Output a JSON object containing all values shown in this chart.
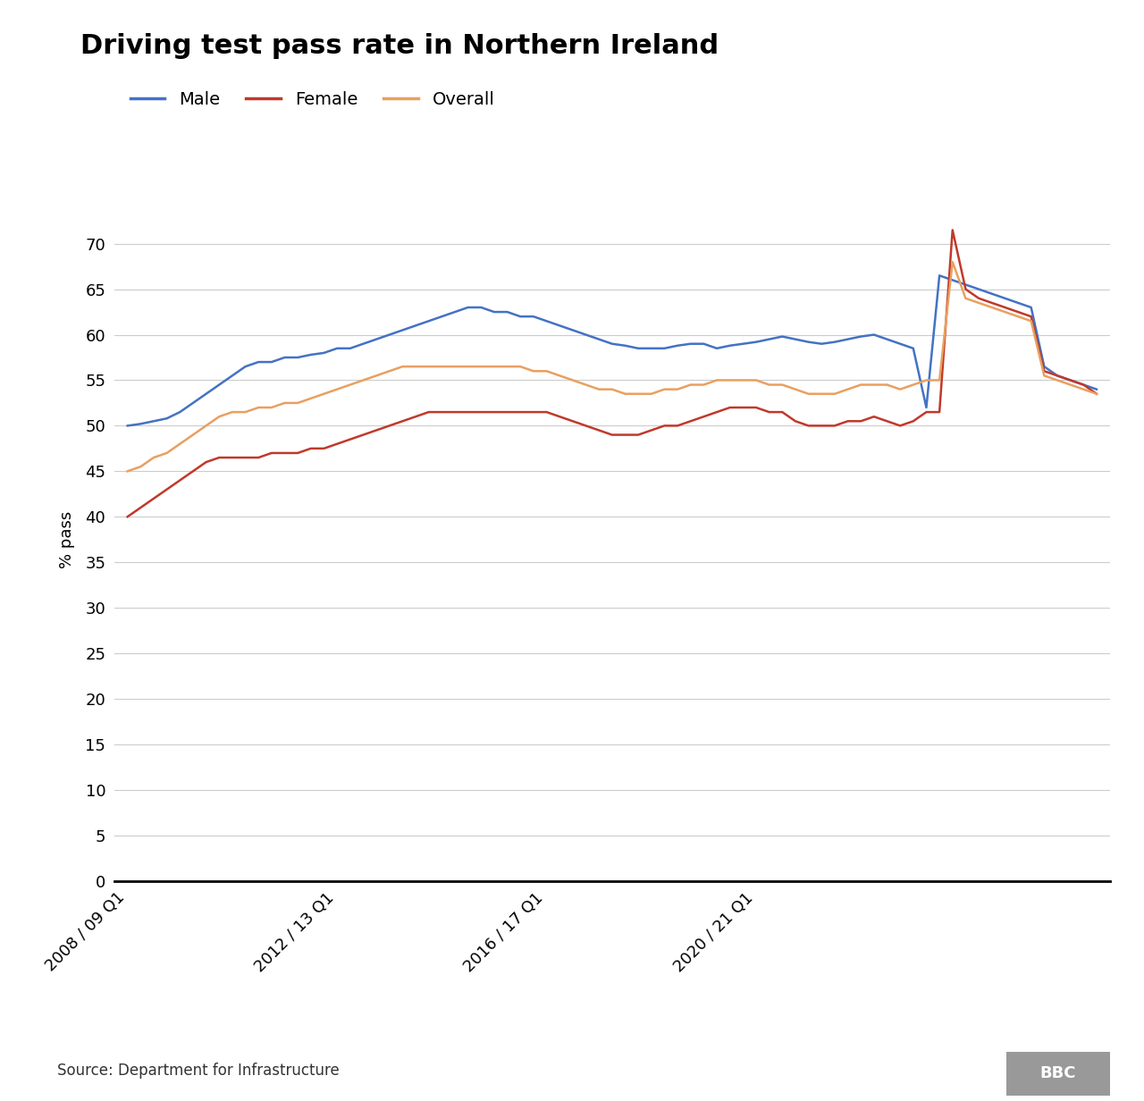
{
  "title": "Driving test pass rate in Northern Ireland",
  "ylabel": "% pass",
  "source": "Source: Department for Infrastructure",
  "line_colors": {
    "male": "#4472C4",
    "female": "#C0392B",
    "overall": "#E8A060"
  },
  "ylim": [
    0,
    75
  ],
  "yticks": [
    0,
    5,
    10,
    15,
    20,
    25,
    30,
    35,
    40,
    45,
    50,
    55,
    60,
    65,
    70
  ],
  "xtick_labels": [
    "2008 / 09 Q1",
    "2012 / 13 Q1",
    "2016 / 17 Q1",
    "2020 / 21 Q1"
  ],
  "male": [
    50.0,
    50.2,
    50.5,
    50.8,
    51.5,
    52.5,
    53.5,
    54.5,
    55.5,
    56.5,
    57.0,
    57.0,
    57.5,
    57.5,
    57.8,
    58.0,
    58.5,
    58.5,
    59.0,
    59.5,
    60.0,
    60.5,
    61.0,
    61.5,
    62.0,
    62.5,
    63.0,
    63.0,
    62.5,
    62.5,
    62.0,
    62.0,
    61.5,
    61.0,
    60.5,
    60.0,
    59.5,
    59.0,
    58.8,
    58.5,
    58.5,
    58.5,
    58.8,
    59.0,
    59.0,
    58.5,
    58.8,
    59.0,
    59.2,
    59.5,
    59.8,
    59.5,
    59.2,
    59.0,
    59.2,
    59.5,
    59.8,
    60.0,
    59.5,
    59.0,
    58.5,
    52.0,
    66.5,
    66.0,
    65.5,
    65.0,
    64.5,
    64.0,
    63.5,
    63.0,
    56.5,
    55.5,
    55.0,
    54.5,
    54.0
  ],
  "female": [
    40.0,
    41.0,
    42.0,
    43.0,
    44.0,
    45.0,
    46.0,
    46.5,
    46.5,
    46.5,
    46.5,
    47.0,
    47.0,
    47.0,
    47.5,
    47.5,
    48.0,
    48.5,
    49.0,
    49.5,
    50.0,
    50.5,
    51.0,
    51.5,
    51.5,
    51.5,
    51.5,
    51.5,
    51.5,
    51.5,
    51.5,
    51.5,
    51.5,
    51.0,
    50.5,
    50.0,
    49.5,
    49.0,
    49.0,
    49.0,
    49.5,
    50.0,
    50.0,
    50.5,
    51.0,
    51.5,
    52.0,
    52.0,
    52.0,
    51.5,
    51.5,
    50.5,
    50.0,
    50.0,
    50.0,
    50.5,
    50.5,
    51.0,
    50.5,
    50.0,
    50.5,
    51.5,
    51.5,
    71.5,
    65.0,
    64.0,
    63.5,
    63.0,
    62.5,
    62.0,
    56.0,
    55.5,
    55.0,
    54.5,
    53.5
  ],
  "overall": [
    45.0,
    45.5,
    46.5,
    47.0,
    48.0,
    49.0,
    50.0,
    51.0,
    51.5,
    51.5,
    52.0,
    52.0,
    52.5,
    52.5,
    53.0,
    53.5,
    54.0,
    54.5,
    55.0,
    55.5,
    56.0,
    56.5,
    56.5,
    56.5,
    56.5,
    56.5,
    56.5,
    56.5,
    56.5,
    56.5,
    56.5,
    56.0,
    56.0,
    55.5,
    55.0,
    54.5,
    54.0,
    54.0,
    53.5,
    53.5,
    53.5,
    54.0,
    54.0,
    54.5,
    54.5,
    55.0,
    55.0,
    55.0,
    55.0,
    54.5,
    54.5,
    54.0,
    53.5,
    53.5,
    53.5,
    54.0,
    54.5,
    54.5,
    54.5,
    54.0,
    54.5,
    55.0,
    55.0,
    68.0,
    64.0,
    63.5,
    63.0,
    62.5,
    62.0,
    61.5,
    55.5,
    55.0,
    54.5,
    54.0,
    53.5
  ]
}
